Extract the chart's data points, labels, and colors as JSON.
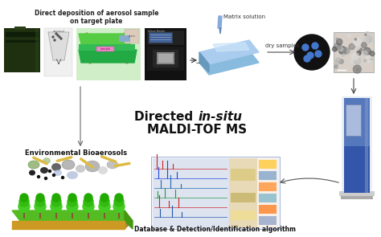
{
  "bg_color": "#ffffff",
  "top_left_label": "Direct deposition of aerosol sample\non target plate",
  "matrix_label": "Matrix solution",
  "dry_samples_label": "dry samples",
  "env_bio_label": "Environmental Bioaerosols",
  "db_label": "Database & Detection/Identification algorithm",
  "title_directed": "Directed ",
  "title_insitu": "in-situ",
  "title_maldi": "MALDI-TOF MS",
  "figsize": [
    4.74,
    2.95
  ],
  "dpi": 100
}
